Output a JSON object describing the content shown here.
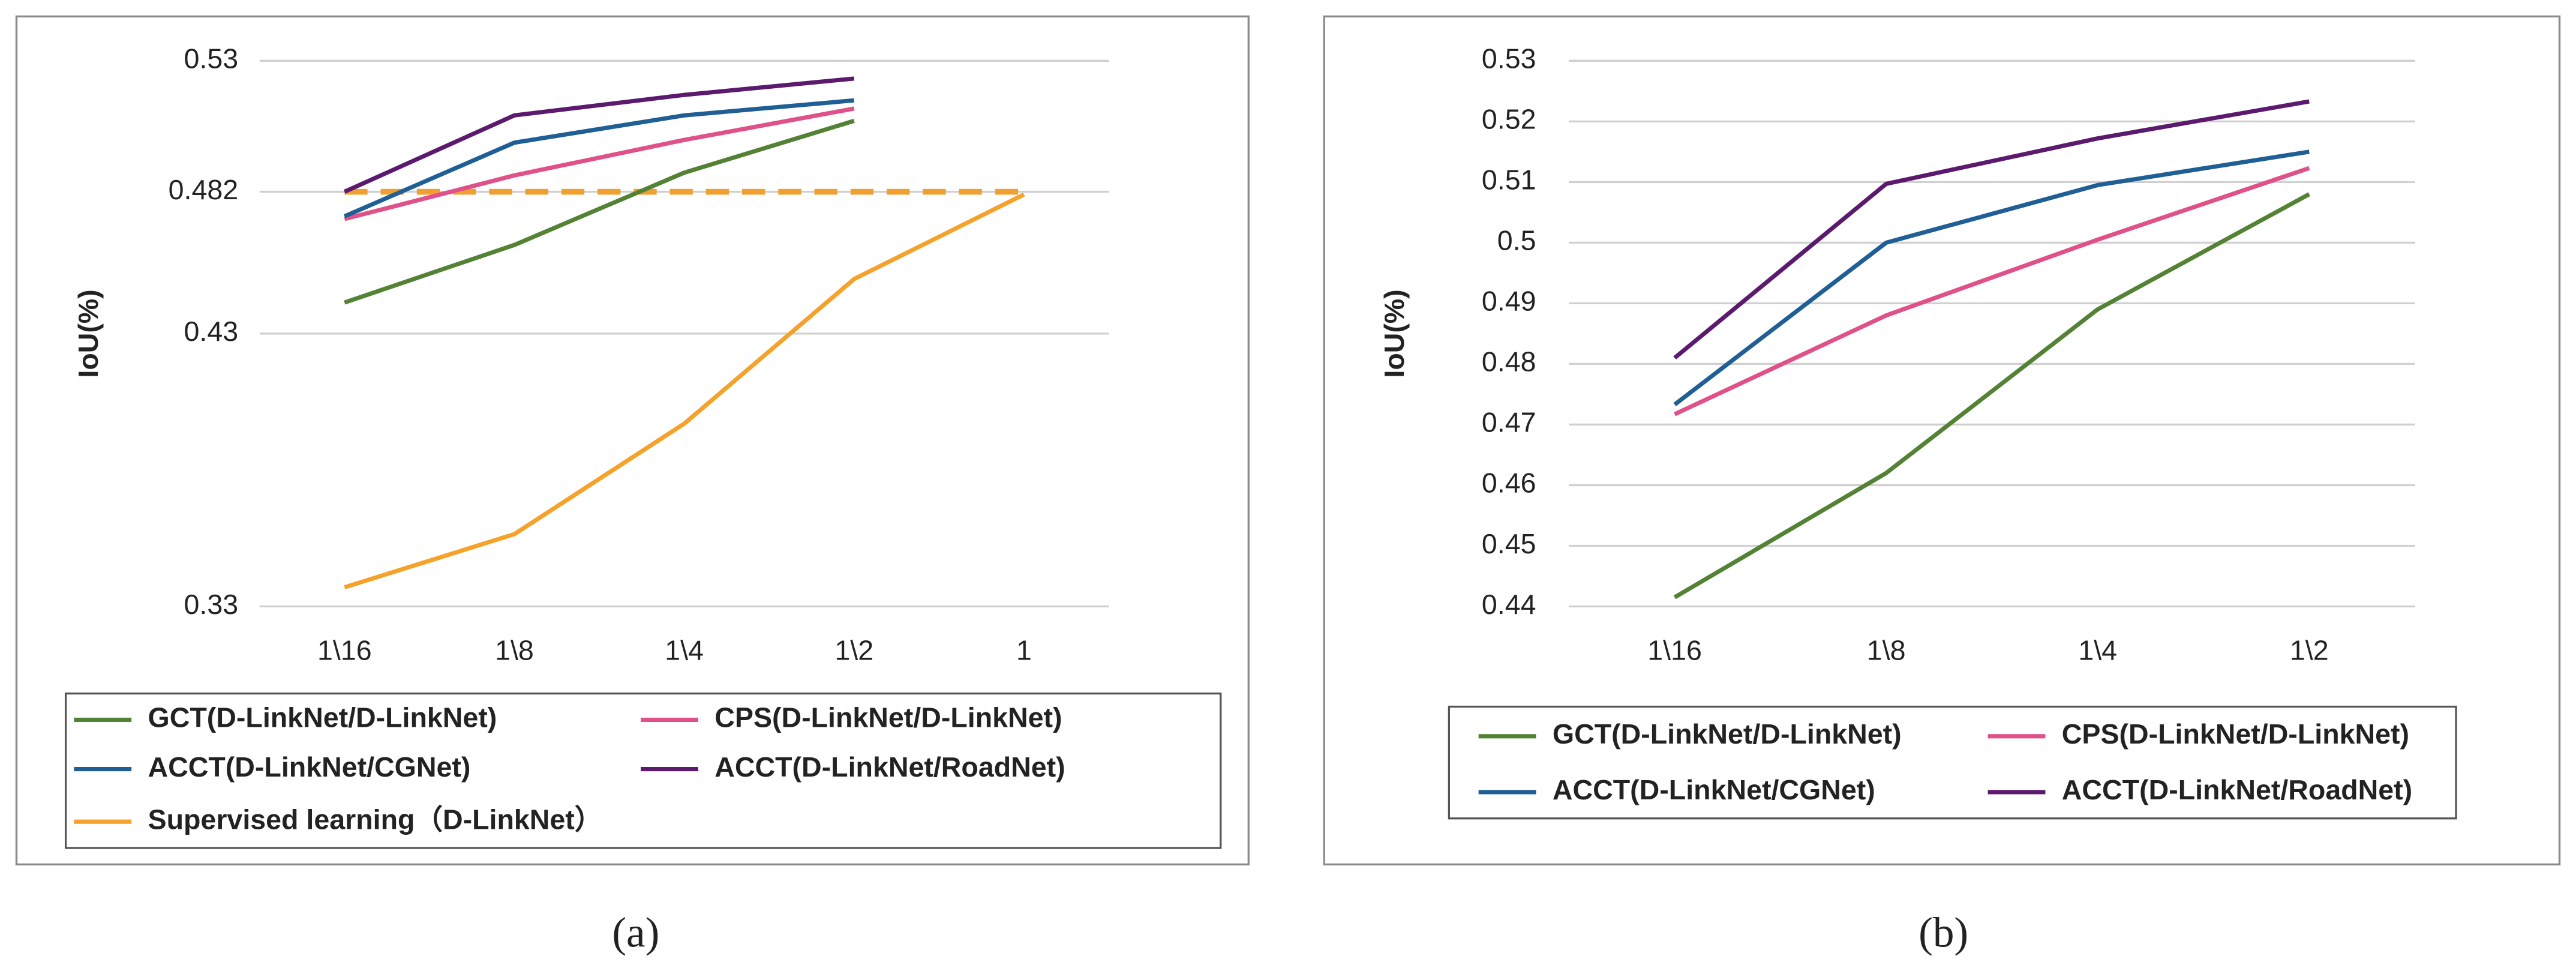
{
  "chart_data": [
    {
      "type": "line",
      "caption": "(a)",
      "y_label": "IoU(%)",
      "categories": [
        "1\\16",
        "1\\8",
        "1\\4",
        "1\\2",
        "1"
      ],
      "ylim": [
        0.33,
        0.53
      ],
      "yticks": [
        0.33,
        0.43,
        0.482,
        0.53
      ],
      "grid": true,
      "reference_line": {
        "value": 0.482,
        "color": "#f0a030"
      },
      "series": [
        {
          "name": "GCT(D-LinkNet/D-LinkNet)",
          "color": "#548235",
          "values": [
            0.4414,
            0.4625,
            0.489,
            0.508,
            null
          ]
        },
        {
          "name": "CPS(D-LinkNet/D-LinkNet)",
          "color": "#e0518a",
          "values": [
            0.472,
            0.488,
            0.501,
            0.5125,
            null
          ]
        },
        {
          "name": "ACCT(D-LinkNet/CGNet)",
          "color": "#1f5f95",
          "values": [
            0.473,
            0.5,
            0.51,
            0.5155,
            null
          ]
        },
        {
          "name": "ACCT(D-LinkNet/RoadNet)",
          "color": "#5b1a6e",
          "values": [
            0.482,
            0.51,
            0.5175,
            0.5235,
            null
          ]
        },
        {
          "name": "Supervised learning（D-LinkNet）",
          "color": "#f5a12a",
          "values": [
            0.337,
            0.3565,
            0.397,
            0.45,
            0.481
          ]
        }
      ]
    },
    {
      "type": "line",
      "caption": "(b)",
      "y_label": "IoU(%)",
      "categories": [
        "1\\16",
        "1\\8",
        "1\\4",
        "1\\2"
      ],
      "ylim": [
        0.44,
        0.53
      ],
      "yticks": [
        0.44,
        0.45,
        0.46,
        0.47,
        0.48,
        0.49,
        0.5,
        0.51,
        0.52,
        0.53
      ],
      "grid": true,
      "series": [
        {
          "name": "GCT(D-LinkNet/D-LinkNet)",
          "color": "#548235",
          "values": [
            0.4415,
            0.462,
            0.489,
            0.508
          ]
        },
        {
          "name": "CPS(D-LinkNet/D-LinkNet)",
          "color": "#e0518a",
          "values": [
            0.4717,
            0.488,
            0.5005,
            0.5123
          ]
        },
        {
          "name": "ACCT(D-LinkNet/CGNet)",
          "color": "#1f5f95",
          "values": [
            0.4733,
            0.5,
            0.5095,
            0.515
          ]
        },
        {
          "name": "ACCT(D-LinkNet/RoadNet)",
          "color": "#5b1a6e",
          "values": [
            0.481,
            0.5097,
            0.5172,
            0.5233
          ]
        }
      ]
    }
  ]
}
